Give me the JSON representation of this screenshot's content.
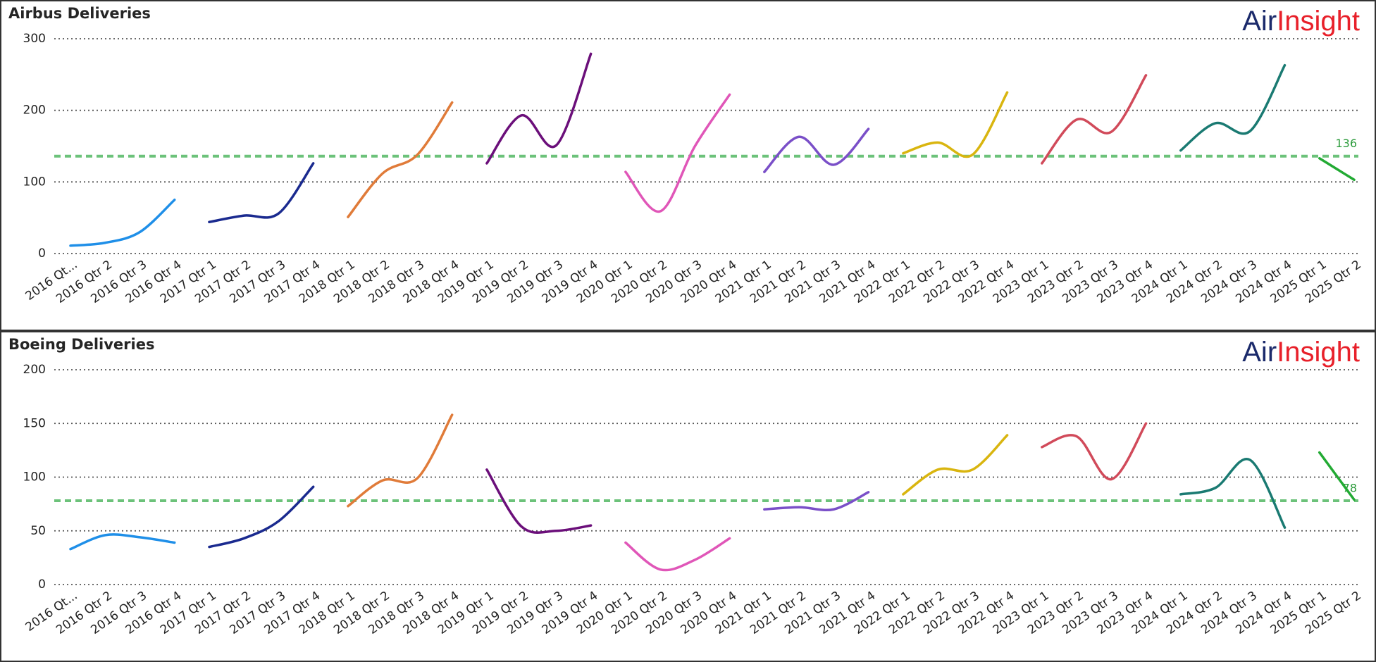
{
  "chart_data": [
    {
      "type": "line",
      "title": "Airbus Deliveries",
      "brand": [
        "Air",
        "Insight"
      ],
      "categories": [
        "2016 Qt...",
        "2016 Qtr 2",
        "2016 Qtr 3",
        "2016 Qtr 4",
        "2017 Qtr 1",
        "2017 Qtr 2",
        "2017 Qtr 3",
        "2017 Qtr 4",
        "2018 Qtr 1",
        "2018 Qtr 2",
        "2018 Qtr 3",
        "2018 Qtr 4",
        "2019 Qtr 1",
        "2019 Qtr 2",
        "2019 Qtr 3",
        "2019 Qtr 4",
        "2020 Qtr 1",
        "2020 Qtr 2",
        "2020 Qtr 3",
        "2020 Qtr 4",
        "2021 Qtr 1",
        "2021 Qtr 2",
        "2021 Qtr 3",
        "2021 Qtr 4",
        "2022 Qtr 1",
        "2022 Qtr 2",
        "2022 Qtr 3",
        "2022 Qtr 4",
        "2023 Qtr 1",
        "2023 Qtr 2",
        "2023 Qtr 3",
        "2023 Qtr 4",
        "2024 Qtr 1",
        "2024 Qtr 2",
        "2024 Qtr 3",
        "2024 Qtr 4",
        "2025 Qtr 1",
        "2025 Qtr 2"
      ],
      "series": [
        {
          "color": "#1f8fe8",
          "values": [
            11,
            15,
            30,
            75,
            null,
            null,
            null,
            null,
            null,
            null,
            null,
            null,
            null,
            null,
            null,
            null,
            null,
            null,
            null,
            null,
            null,
            null,
            null,
            null,
            null,
            null,
            null,
            null,
            null,
            null,
            null,
            null,
            null,
            null,
            null,
            null,
            null,
            null
          ]
        },
        {
          "color": "#1a2a8f",
          "values": [
            null,
            null,
            null,
            null,
            44,
            53,
            56,
            126,
            null,
            null,
            null,
            null,
            null,
            null,
            null,
            null,
            null,
            null,
            null,
            null,
            null,
            null,
            null,
            null,
            null,
            null,
            null,
            null,
            null,
            null,
            null,
            null,
            null,
            null,
            null,
            null,
            null,
            null
          ]
        },
        {
          "color": "#e07b39",
          "values": [
            null,
            null,
            null,
            null,
            null,
            null,
            null,
            null,
            51,
            112,
            138,
            211,
            null,
            null,
            null,
            null,
            null,
            null,
            null,
            null,
            null,
            null,
            null,
            null,
            null,
            null,
            null,
            null,
            null,
            null,
            null,
            null,
            null,
            null,
            null,
            null,
            null,
            null
          ]
        },
        {
          "color": "#6b0f7a",
          "values": [
            null,
            null,
            null,
            null,
            null,
            null,
            null,
            null,
            null,
            null,
            null,
            null,
            126,
            193,
            151,
            279,
            null,
            null,
            null,
            null,
            null,
            null,
            null,
            null,
            null,
            null,
            null,
            null,
            null,
            null,
            null,
            null,
            null,
            null,
            null,
            null,
            null,
            null
          ]
        },
        {
          "color": "#e056b8",
          "values": [
            null,
            null,
            null,
            null,
            null,
            null,
            null,
            null,
            null,
            null,
            null,
            null,
            null,
            null,
            null,
            null,
            114,
            59,
            150,
            222,
            null,
            null,
            null,
            null,
            null,
            null,
            null,
            null,
            null,
            null,
            null,
            null,
            null,
            null,
            null,
            null,
            null,
            null
          ]
        },
        {
          "color": "#7a4fc8",
          "values": [
            null,
            null,
            null,
            null,
            null,
            null,
            null,
            null,
            null,
            null,
            null,
            null,
            null,
            null,
            null,
            null,
            null,
            null,
            null,
            null,
            114,
            163,
            124,
            174,
            null,
            null,
            null,
            null,
            null,
            null,
            null,
            null,
            null,
            null,
            null,
            null,
            null,
            null
          ]
        },
        {
          "color": "#d9b50f",
          "values": [
            null,
            null,
            null,
            null,
            null,
            null,
            null,
            null,
            null,
            null,
            null,
            null,
            null,
            null,
            null,
            null,
            null,
            null,
            null,
            null,
            null,
            null,
            null,
            null,
            140,
            155,
            138,
            225,
            null,
            null,
            null,
            null,
            null,
            null,
            null,
            null,
            null,
            null
          ]
        },
        {
          "color": "#d14a5a",
          "values": [
            null,
            null,
            null,
            null,
            null,
            null,
            null,
            null,
            null,
            null,
            null,
            null,
            null,
            null,
            null,
            null,
            null,
            null,
            null,
            null,
            null,
            null,
            null,
            null,
            null,
            null,
            null,
            null,
            126,
            187,
            170,
            249,
            null,
            null,
            null,
            null,
            null,
            null
          ]
        },
        {
          "color": "#1a7a72",
          "values": [
            null,
            null,
            null,
            null,
            null,
            null,
            null,
            null,
            null,
            null,
            null,
            null,
            null,
            null,
            null,
            null,
            null,
            null,
            null,
            null,
            null,
            null,
            null,
            null,
            null,
            null,
            null,
            null,
            null,
            null,
            null,
            null,
            144,
            182,
            171,
            263,
            null,
            null
          ]
        },
        {
          "color": "#22aa33",
          "values": [
            null,
            null,
            null,
            null,
            null,
            null,
            null,
            null,
            null,
            null,
            null,
            null,
            null,
            null,
            null,
            null,
            null,
            null,
            null,
            null,
            null,
            null,
            null,
            null,
            null,
            null,
            null,
            null,
            null,
            null,
            null,
            null,
            null,
            null,
            null,
            null,
            133,
            103
          ]
        }
      ],
      "ylim": [
        0,
        300
      ],
      "yticks": [
        0,
        100,
        200,
        300
      ],
      "grid": true,
      "reference_line": 136,
      "reference_color": "#6cc27a"
    },
    {
      "type": "line",
      "title": "Boeing Deliveries",
      "brand": [
        "Air",
        "Insight"
      ],
      "categories": [
        "2016 Qt...",
        "2016 Qtr 2",
        "2016 Qtr 3",
        "2016 Qtr 4",
        "2017 Qtr 1",
        "2017 Qtr 2",
        "2017 Qtr 3",
        "2017 Qtr 4",
        "2018 Qtr 1",
        "2018 Qtr 2",
        "2018 Qtr 3",
        "2018 Qtr 4",
        "2019 Qtr 1",
        "2019 Qtr 2",
        "2019 Qtr 3",
        "2019 Qtr 4",
        "2020 Qtr 1",
        "2020 Qtr 2",
        "2020 Qtr 3",
        "2020 Qtr 4",
        "2021 Qtr 1",
        "2021 Qtr 2",
        "2021 Qtr 3",
        "2021 Qtr 4",
        "2022 Qtr 1",
        "2022 Qtr 2",
        "2022 Qtr 3",
        "2022 Qtr 4",
        "2023 Qtr 1",
        "2023 Qtr 2",
        "2023 Qtr 3",
        "2023 Qtr 4",
        "2024 Qtr 1",
        "2024 Qtr 2",
        "2024 Qtr 3",
        "2024 Qtr 4",
        "2025 Qtr 1",
        "2025 Qtr 2"
      ],
      "series": [
        {
          "color": "#1f8fe8",
          "values": [
            33,
            46,
            44,
            39,
            null,
            null,
            null,
            null,
            null,
            null,
            null,
            null,
            null,
            null,
            null,
            null,
            null,
            null,
            null,
            null,
            null,
            null,
            null,
            null,
            null,
            null,
            null,
            null,
            null,
            null,
            null,
            null,
            null,
            null,
            null,
            null,
            null,
            null
          ]
        },
        {
          "color": "#1a2a8f",
          "values": [
            null,
            null,
            null,
            null,
            35,
            43,
            59,
            91,
            null,
            null,
            null,
            null,
            null,
            null,
            null,
            null,
            null,
            null,
            null,
            null,
            null,
            null,
            null,
            null,
            null,
            null,
            null,
            null,
            null,
            null,
            null,
            null,
            null,
            null,
            null,
            null,
            null,
            null
          ]
        },
        {
          "color": "#e07b39",
          "values": [
            null,
            null,
            null,
            null,
            null,
            null,
            null,
            null,
            73,
            97,
            99,
            158,
            null,
            null,
            null,
            null,
            null,
            null,
            null,
            null,
            null,
            null,
            null,
            null,
            null,
            null,
            null,
            null,
            null,
            null,
            null,
            null,
            null,
            null,
            null,
            null,
            null,
            null
          ]
        },
        {
          "color": "#6b0f7a",
          "values": [
            null,
            null,
            null,
            null,
            null,
            null,
            null,
            null,
            null,
            null,
            null,
            null,
            107,
            54,
            50,
            55,
            null,
            null,
            null,
            null,
            null,
            null,
            null,
            null,
            null,
            null,
            null,
            null,
            null,
            null,
            null,
            null,
            null,
            null,
            null,
            null,
            null,
            null
          ]
        },
        {
          "color": "#e056b8",
          "values": [
            null,
            null,
            null,
            null,
            null,
            null,
            null,
            null,
            null,
            null,
            null,
            null,
            null,
            null,
            null,
            null,
            39,
            14,
            23,
            43,
            null,
            null,
            null,
            null,
            null,
            null,
            null,
            null,
            null,
            null,
            null,
            null,
            null,
            null,
            null,
            null,
            null,
            null
          ]
        },
        {
          "color": "#7a4fc8",
          "values": [
            null,
            null,
            null,
            null,
            null,
            null,
            null,
            null,
            null,
            null,
            null,
            null,
            null,
            null,
            null,
            null,
            null,
            null,
            null,
            null,
            70,
            72,
            70,
            86,
            null,
            null,
            null,
            null,
            null,
            null,
            null,
            null,
            null,
            null,
            null,
            null,
            null,
            null
          ]
        },
        {
          "color": "#d9b50f",
          "values": [
            null,
            null,
            null,
            null,
            null,
            null,
            null,
            null,
            null,
            null,
            null,
            null,
            null,
            null,
            null,
            null,
            null,
            null,
            null,
            null,
            null,
            null,
            null,
            null,
            84,
            107,
            107,
            139,
            null,
            null,
            null,
            null,
            null,
            null,
            null,
            null,
            null,
            null
          ]
        },
        {
          "color": "#d14a5a",
          "values": [
            null,
            null,
            null,
            null,
            null,
            null,
            null,
            null,
            null,
            null,
            null,
            null,
            null,
            null,
            null,
            null,
            null,
            null,
            null,
            null,
            null,
            null,
            null,
            null,
            null,
            null,
            null,
            null,
            128,
            138,
            98,
            150,
            null,
            null,
            null,
            null,
            null,
            null
          ]
        },
        {
          "color": "#1a7a72",
          "values": [
            null,
            null,
            null,
            null,
            null,
            null,
            null,
            null,
            null,
            null,
            null,
            null,
            null,
            null,
            null,
            null,
            null,
            null,
            null,
            null,
            null,
            null,
            null,
            null,
            null,
            null,
            null,
            null,
            null,
            null,
            null,
            null,
            84,
            90,
            116,
            53,
            null,
            null
          ]
        },
        {
          "color": "#22aa33",
          "values": [
            null,
            null,
            null,
            null,
            null,
            null,
            null,
            null,
            null,
            null,
            null,
            null,
            null,
            null,
            null,
            null,
            null,
            null,
            null,
            null,
            null,
            null,
            null,
            null,
            null,
            null,
            null,
            null,
            null,
            null,
            null,
            null,
            null,
            null,
            null,
            null,
            123,
            79
          ]
        }
      ],
      "ylim": [
        0,
        200
      ],
      "yticks": [
        0,
        50,
        100,
        150,
        200
      ],
      "grid": true,
      "reference_line": 78,
      "reference_color": "#6cc27a"
    }
  ]
}
